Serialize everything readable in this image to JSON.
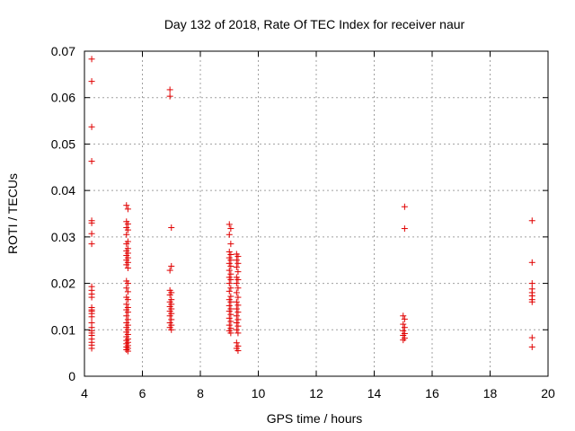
{
  "chart_data": {
    "type": "scatter",
    "title": "Day 132 of 2018, Rate Of TEC Index for receiver naur",
    "xlabel": "GPS time / hours",
    "ylabel": "ROTI / TECUs",
    "xlim": [
      4,
      20
    ],
    "ylim": [
      0,
      0.07
    ],
    "xticks": [
      4,
      6,
      8,
      10,
      12,
      14,
      16,
      18,
      20
    ],
    "yticks": [
      0,
      0.01,
      0.02,
      0.03,
      0.04,
      0.05,
      0.06,
      0.07
    ],
    "xtick_labels": [
      "4",
      "6",
      "8",
      "10",
      "12",
      "14",
      "16",
      "18",
      "20"
    ],
    "ytick_labels": [
      "0",
      "0.01",
      "0.02",
      "0.03",
      "0.04",
      "0.05",
      "0.06",
      "0.07"
    ],
    "grid": true,
    "marker": "+",
    "marker_color": "#e00000",
    "series": [
      {
        "points": [
          [
            4.25,
            0.0683
          ],
          [
            4.25,
            0.0635
          ],
          [
            4.25,
            0.0537
          ],
          [
            4.25,
            0.0463
          ],
          [
            4.25,
            0.0335
          ],
          [
            4.25,
            0.033
          ],
          [
            4.25,
            0.0307
          ],
          [
            4.25,
            0.0285
          ],
          [
            4.25,
            0.0193
          ],
          [
            4.25,
            0.0185
          ],
          [
            4.25,
            0.0177
          ],
          [
            4.25,
            0.017
          ],
          [
            4.25,
            0.0148
          ],
          [
            4.25,
            0.0143
          ],
          [
            4.25,
            0.014
          ],
          [
            4.25,
            0.0135
          ],
          [
            4.25,
            0.0128
          ],
          [
            4.25,
            0.0115
          ],
          [
            4.25,
            0.0105
          ],
          [
            4.25,
            0.0098
          ],
          [
            4.25,
            0.0093
          ],
          [
            4.25,
            0.0088
          ],
          [
            4.25,
            0.008
          ],
          [
            4.25,
            0.0073
          ],
          [
            4.25,
            0.0067
          ],
          [
            4.25,
            0.006
          ],
          [
            5.45,
            0.0368
          ],
          [
            5.5,
            0.036
          ],
          [
            5.45,
            0.0333
          ],
          [
            5.5,
            0.0328
          ],
          [
            5.45,
            0.032
          ],
          [
            5.5,
            0.0315
          ],
          [
            5.45,
            0.0305
          ],
          [
            5.5,
            0.029
          ],
          [
            5.45,
            0.0285
          ],
          [
            5.5,
            0.0275
          ],
          [
            5.45,
            0.027
          ],
          [
            5.5,
            0.0265
          ],
          [
            5.45,
            0.026
          ],
          [
            5.5,
            0.0255
          ],
          [
            5.45,
            0.025
          ],
          [
            5.5,
            0.0245
          ],
          [
            5.45,
            0.024
          ],
          [
            5.5,
            0.0233
          ],
          [
            5.45,
            0.0205
          ],
          [
            5.5,
            0.02
          ],
          [
            5.45,
            0.019
          ],
          [
            5.5,
            0.0182
          ],
          [
            5.45,
            0.017
          ],
          [
            5.5,
            0.0165
          ],
          [
            5.45,
            0.0155
          ],
          [
            5.5,
            0.0148
          ],
          [
            5.45,
            0.0143
          ],
          [
            5.5,
            0.0138
          ],
          [
            5.45,
            0.013
          ],
          [
            5.5,
            0.0122
          ],
          [
            5.45,
            0.0115
          ],
          [
            5.5,
            0.011
          ],
          [
            5.45,
            0.0105
          ],
          [
            5.5,
            0.01
          ],
          [
            5.45,
            0.0095
          ],
          [
            5.5,
            0.009
          ],
          [
            5.45,
            0.0085
          ],
          [
            5.5,
            0.008
          ],
          [
            5.45,
            0.0077
          ],
          [
            5.5,
            0.0073
          ],
          [
            5.45,
            0.007
          ],
          [
            5.5,
            0.0066
          ],
          [
            5.45,
            0.0063
          ],
          [
            5.5,
            0.006
          ],
          [
            5.45,
            0.0057
          ],
          [
            5.5,
            0.0054
          ],
          [
            6.95,
            0.0617
          ],
          [
            6.95,
            0.0603
          ],
          [
            7.0,
            0.032
          ],
          [
            7.0,
            0.0237
          ],
          [
            6.95,
            0.0228
          ],
          [
            6.95,
            0.0185
          ],
          [
            7.0,
            0.018
          ],
          [
            6.95,
            0.0175
          ],
          [
            7.0,
            0.0165
          ],
          [
            6.95,
            0.016
          ],
          [
            7.0,
            0.0155
          ],
          [
            6.95,
            0.015
          ],
          [
            7.0,
            0.0145
          ],
          [
            6.95,
            0.014
          ],
          [
            7.0,
            0.0135
          ],
          [
            6.95,
            0.013
          ],
          [
            7.0,
            0.0122
          ],
          [
            6.95,
            0.0115
          ],
          [
            7.0,
            0.011
          ],
          [
            6.95,
            0.0105
          ],
          [
            7.0,
            0.01
          ],
          [
            9.0,
            0.0327
          ],
          [
            9.05,
            0.0318
          ],
          [
            9.0,
            0.0305
          ],
          [
            9.05,
            0.0285
          ],
          [
            9.0,
            0.0268
          ],
          [
            9.05,
            0.0262
          ],
          [
            9.0,
            0.0255
          ],
          [
            9.05,
            0.025
          ],
          [
            9.0,
            0.0243
          ],
          [
            9.05,
            0.0237
          ],
          [
            9.0,
            0.0228
          ],
          [
            9.05,
            0.022
          ],
          [
            9.0,
            0.0213
          ],
          [
            9.05,
            0.0208
          ],
          [
            9.0,
            0.02
          ],
          [
            9.05,
            0.019
          ],
          [
            9.0,
            0.0183
          ],
          [
            9.05,
            0.0172
          ],
          [
            9.0,
            0.0165
          ],
          [
            9.05,
            0.016
          ],
          [
            9.0,
            0.0152
          ],
          [
            9.05,
            0.0145
          ],
          [
            9.0,
            0.014
          ],
          [
            9.05,
            0.0133
          ],
          [
            9.0,
            0.0125
          ],
          [
            9.05,
            0.0118
          ],
          [
            9.0,
            0.011
          ],
          [
            9.05,
            0.0103
          ],
          [
            9.0,
            0.0098
          ],
          [
            9.05,
            0.0093
          ],
          [
            9.25,
            0.0263
          ],
          [
            9.3,
            0.0258
          ],
          [
            9.25,
            0.025
          ],
          [
            9.3,
            0.0243
          ],
          [
            9.25,
            0.0235
          ],
          [
            9.3,
            0.0225
          ],
          [
            9.25,
            0.0213
          ],
          [
            9.3,
            0.0208
          ],
          [
            9.25,
            0.02
          ],
          [
            9.3,
            0.019
          ],
          [
            9.25,
            0.018
          ],
          [
            9.3,
            0.017
          ],
          [
            9.25,
            0.016
          ],
          [
            9.3,
            0.0153
          ],
          [
            9.25,
            0.0145
          ],
          [
            9.3,
            0.0138
          ],
          [
            9.25,
            0.013
          ],
          [
            9.3,
            0.0122
          ],
          [
            9.25,
            0.0115
          ],
          [
            9.3,
            0.0108
          ],
          [
            9.25,
            0.01
          ],
          [
            9.3,
            0.0093
          ],
          [
            9.25,
            0.0072
          ],
          [
            9.3,
            0.0065
          ],
          [
            9.25,
            0.006
          ],
          [
            9.3,
            0.0055
          ],
          [
            15.05,
            0.0365
          ],
          [
            15.05,
            0.0318
          ],
          [
            15.0,
            0.013
          ],
          [
            15.05,
            0.0123
          ],
          [
            15.0,
            0.0112
          ],
          [
            15.05,
            0.0105
          ],
          [
            15.0,
            0.0098
          ],
          [
            15.05,
            0.0092
          ],
          [
            15.0,
            0.0088
          ],
          [
            15.05,
            0.0082
          ],
          [
            15.0,
            0.0078
          ],
          [
            19.45,
            0.0335
          ],
          [
            19.45,
            0.0245
          ],
          [
            19.45,
            0.02
          ],
          [
            19.45,
            0.0188
          ],
          [
            19.45,
            0.018
          ],
          [
            19.45,
            0.0173
          ],
          [
            19.45,
            0.0165
          ],
          [
            19.45,
            0.016
          ],
          [
            19.45,
            0.0083
          ],
          [
            19.45,
            0.0063
          ]
        ]
      }
    ]
  }
}
